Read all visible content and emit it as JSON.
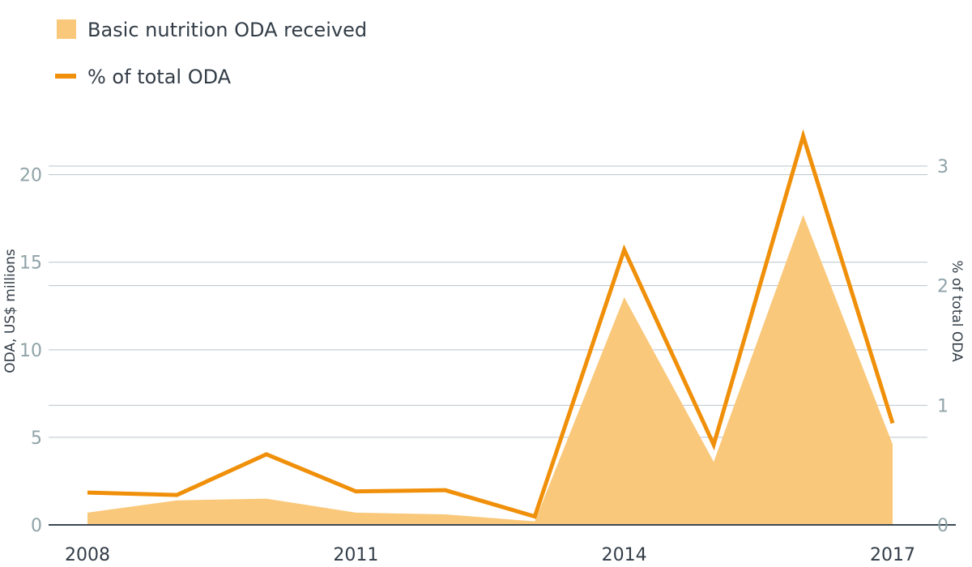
{
  "chart_data": {
    "type": "area",
    "x": [
      2008,
      2009,
      2010,
      2011,
      2012,
      2013,
      2014,
      2015,
      2016,
      2017
    ],
    "x_tick_labels": [
      "2008",
      "2011",
      "2014",
      "2017"
    ],
    "x_tick_values": [
      2008,
      2011,
      2014,
      2017
    ],
    "xlim": [
      2008,
      2017
    ],
    "left_axis": {
      "label": "ODA, US$ millions",
      "ylim": [
        0,
        23.5
      ],
      "ticks": [
        0,
        5,
        10,
        15,
        20
      ],
      "tick_labels": [
        "0",
        "5",
        "10",
        "15",
        "20"
      ]
    },
    "right_axis": {
      "label": "% of total ODA",
      "ylim": [
        0,
        3.44
      ],
      "ticks": [
        0,
        1,
        2,
        3
      ],
      "tick_labels": [
        "0",
        "1",
        "2",
        "3"
      ]
    },
    "series": [
      {
        "name": "Basic nutrition ODA received",
        "type": "area",
        "axis": "left",
        "color": "#fac87a",
        "values": [
          0.7,
          1.4,
          1.5,
          0.7,
          0.6,
          0.2,
          13.0,
          3.6,
          17.7,
          4.6
        ]
      },
      {
        "name": "% of total ODA",
        "type": "line",
        "axis": "right",
        "color": "#f0900a",
        "values": [
          0.27,
          0.25,
          0.59,
          0.28,
          0.29,
          0.07,
          2.3,
          0.67,
          3.25,
          0.85
        ]
      }
    ],
    "grid": true,
    "legend_position": "top-left"
  }
}
